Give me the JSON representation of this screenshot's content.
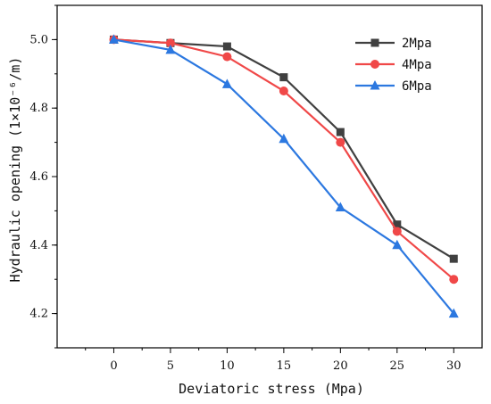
{
  "chart_data": {
    "type": "line",
    "x": [
      0,
      5,
      10,
      15,
      20,
      25,
      30
    ],
    "xlabel": "Deviatoric stress (Mpa)",
    "ylabel": "Hydraulic opening (1×10⁻⁶/m)",
    "xlim": [
      -5,
      32.5
    ],
    "ylim": [
      4.1,
      5.1
    ],
    "xticks": [
      0,
      5,
      10,
      15,
      20,
      25,
      30
    ],
    "yticks": [
      4.2,
      4.4,
      4.6,
      4.8,
      5.0
    ],
    "ytick_labels": [
      "4.2",
      "4.4",
      "4.6",
      "4.8",
      "5.0"
    ],
    "grid": false,
    "legend_position": "top-right",
    "series": [
      {
        "name": "2Mpa",
        "color": "#404040",
        "marker": "square",
        "values": [
          5.0,
          4.99,
          4.98,
          4.89,
          4.73,
          4.46,
          4.36
        ]
      },
      {
        "name": "4Mpa",
        "color": "#f04848",
        "marker": "circle",
        "values": [
          5.0,
          4.99,
          4.95,
          4.85,
          4.7,
          4.44,
          4.3
        ]
      },
      {
        "name": "6Mpa",
        "color": "#2c78e0",
        "marker": "triangle",
        "values": [
          5.0,
          4.97,
          4.87,
          4.71,
          4.51,
          4.4,
          4.2
        ]
      }
    ]
  }
}
